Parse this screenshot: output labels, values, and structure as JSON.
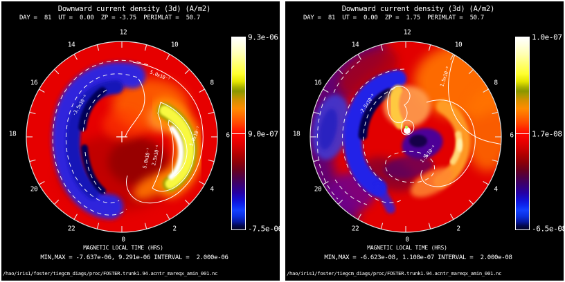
{
  "mlt_hours": [
    "0",
    "2",
    "4",
    "6",
    "8",
    "10",
    "12",
    "14",
    "16",
    "18",
    "20",
    "22"
  ],
  "panels": [
    {
      "title": "Downward current density (3d) (A/m2)",
      "params_line": "DAY =  81  UT =  0.00  ZP = -3.75  PERIMLAT =  50.7",
      "axis_label": "MAGNETIC LOCAL TIME (HRS)",
      "stats_line": "MIN,MAX = -7.637e-06, 9.291e-06 INTERVAL =  2.000e-06",
      "file_path": "/hao/iris1/foster/tiegcm_diags/proc/FOSTER.trunk1.94.acntr_mareqx_amin_001.nc",
      "colorbar": {
        "max_label": "9.3e-06",
        "mid_label": "9.0e-07",
        "min_label": "-7.5e-06"
      },
      "contour_labels": [
        "5.0x10⁻⁷",
        "5.0x10⁻⁷",
        "5.0x10⁻⁷",
        "2.5x10⁻⁶",
        "-3.5x10⁻⁶"
      ]
    },
    {
      "title": "Downward current density (3d) (A/m2)",
      "params_line": "DAY =  81  UT =  0.00  ZP =  1.75  PERIMLAT =  50.7",
      "axis_label": "MAGNETIC LOCAL TIME (HRS)",
      "stats_line": "MIN,MAX = -6.623e-08, 1.108e-07 INTERVAL =  2.000e-08",
      "file_path": "/hao/iris1/foster/tiegcm_diags/proc/FOSTER.trunk1.94.acntr_mareqx_amin_001.nc",
      "colorbar": {
        "max_label": "1.0e-07",
        "mid_label": "1.7e-08",
        "min_label": "-6.5e-08"
      },
      "contour_labels": [
        "1.5x10⁻⁸",
        "1.5x10⁻⁸",
        "-2.5x10⁻⁸"
      ]
    }
  ],
  "chart_data": [
    {
      "type": "heatmap",
      "projection": "polar",
      "title": "Downward current density (3d) (A/m2)",
      "day": 81,
      "ut": 0.0,
      "zp": -3.75,
      "perimlat": 50.7,
      "angular_axis": {
        "label": "MAGNETIC LOCAL TIME (HRS)",
        "ticks": [
          0,
          2,
          4,
          6,
          8,
          10,
          12,
          14,
          16,
          18,
          20,
          22
        ],
        "orientation": "0 MLT bottom, 6 right, 12 top, 18 left; minor tick every hour"
      },
      "value_min": -7.637e-06,
      "value_max": 9.291e-06,
      "contour_interval": 2e-06,
      "colorbar_ticks": [
        9.3e-06,
        9e-07,
        -7.5e-06
      ],
      "colorbar_colors_top_to_bottom": [
        "#ffffff",
        "#ffff40",
        "#8a9600",
        "#ff8c00",
        "#ff0000",
        "#b00000",
        "#4c0048",
        "#2400a4",
        "#1240ff",
        "#010324"
      ],
      "labeled_contour_levels": [
        5e-07,
        2.5e-06,
        -3.5e-06
      ],
      "regions": [
        {
          "description": "negative (blue) crescent, dusk sector ~13-21 MLT, dashed contours, core near min"
        },
        {
          "description": "positive (white-yellow) crescent, ~1-7 MLT, solid contours, core near max"
        },
        {
          "description": "background weakly positive (red) elsewhere; plus mark at pole"
        }
      ]
    },
    {
      "type": "heatmap",
      "projection": "polar",
      "title": "Downward current density (3d) (A/m2)",
      "day": 81,
      "ut": 0.0,
      "zp": 1.75,
      "perimlat": 50.7,
      "angular_axis": {
        "label": "MAGNETIC LOCAL TIME (HRS)",
        "ticks": [
          0,
          2,
          4,
          6,
          8,
          10,
          12,
          14,
          16,
          18,
          20,
          22
        ],
        "orientation": "0 MLT bottom, 6 right, 12 top, 18 left; minor tick every hour"
      },
      "value_min": -6.623e-08,
      "value_max": 1.108e-07,
      "contour_interval": 2e-08,
      "colorbar_ticks": [
        1e-07,
        1.7e-08,
        -6.5e-08
      ],
      "colorbar_colors_top_to_bottom": [
        "#ffffff",
        "#ffff40",
        "#8a9600",
        "#ff8c00",
        "#ff0000",
        "#b00000",
        "#4c0048",
        "#2400a4",
        "#1240ff",
        "#010324"
      ],
      "labeled_contour_levels": [
        1.5e-08,
        -2.5e-08
      ],
      "regions": [
        {
          "description": "broad negative (blue/purple) region across dusk/evening sector with dashed contours"
        },
        {
          "description": "bright positive spot near pole with small solid contour loops; max near center"
        },
        {
          "description": "positive (orange) dawn-sector crescent and orange 7-10 MLT outer sector, solid contours"
        }
      ]
    }
  ]
}
